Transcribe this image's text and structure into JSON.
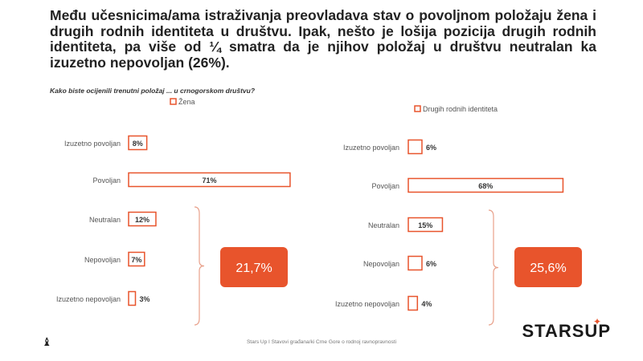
{
  "headline": "Među učesnicima/ama istraživanja preovladava stav o povoljnom položaju žena i drugih rodnih identiteta u društvu. Ipak, nešto je lošija pozicija drugih rodnih identiteta, pa više od ¼ smatra da je njihov položaj u društvu neutralan ka izuzetno nepovoljan (26%).",
  "question": "Kako biste ocijenili trenutni položaj ... u crnogorskom društvu?",
  "footer": "Stars Up I Stavovi građana/ki Crne Gore o rodnoj ravnopravnosti",
  "logo": "STARSUP",
  "colors": {
    "accent": "#e8542c",
    "text": "#333333"
  },
  "chart_data": [
    {
      "type": "bar",
      "legend": "Žena",
      "categories": [
        "Izuzetno povoljan",
        "Povoljan",
        "Neutralan",
        "Nepovoljan",
        "Izuzetno nepovoljan"
      ],
      "values": [
        8,
        71,
        12,
        7,
        3
      ],
      "labels": [
        "8%",
        "71%",
        "12%",
        "7%",
        "3%"
      ],
      "summary": "21,7%"
    },
    {
      "type": "bar",
      "legend": "Drugih rodnih identiteta",
      "categories": [
        "Izuzetno povoljan",
        "Povoljan",
        "Neutralan",
        "Nepovoljan",
        "Izuzetno nepovoljan"
      ],
      "values": [
        6,
        68,
        15,
        6,
        4
      ],
      "labels": [
        "6%",
        "68%",
        "15%",
        "6%",
        "4%"
      ],
      "summary": "25,6%"
    }
  ]
}
